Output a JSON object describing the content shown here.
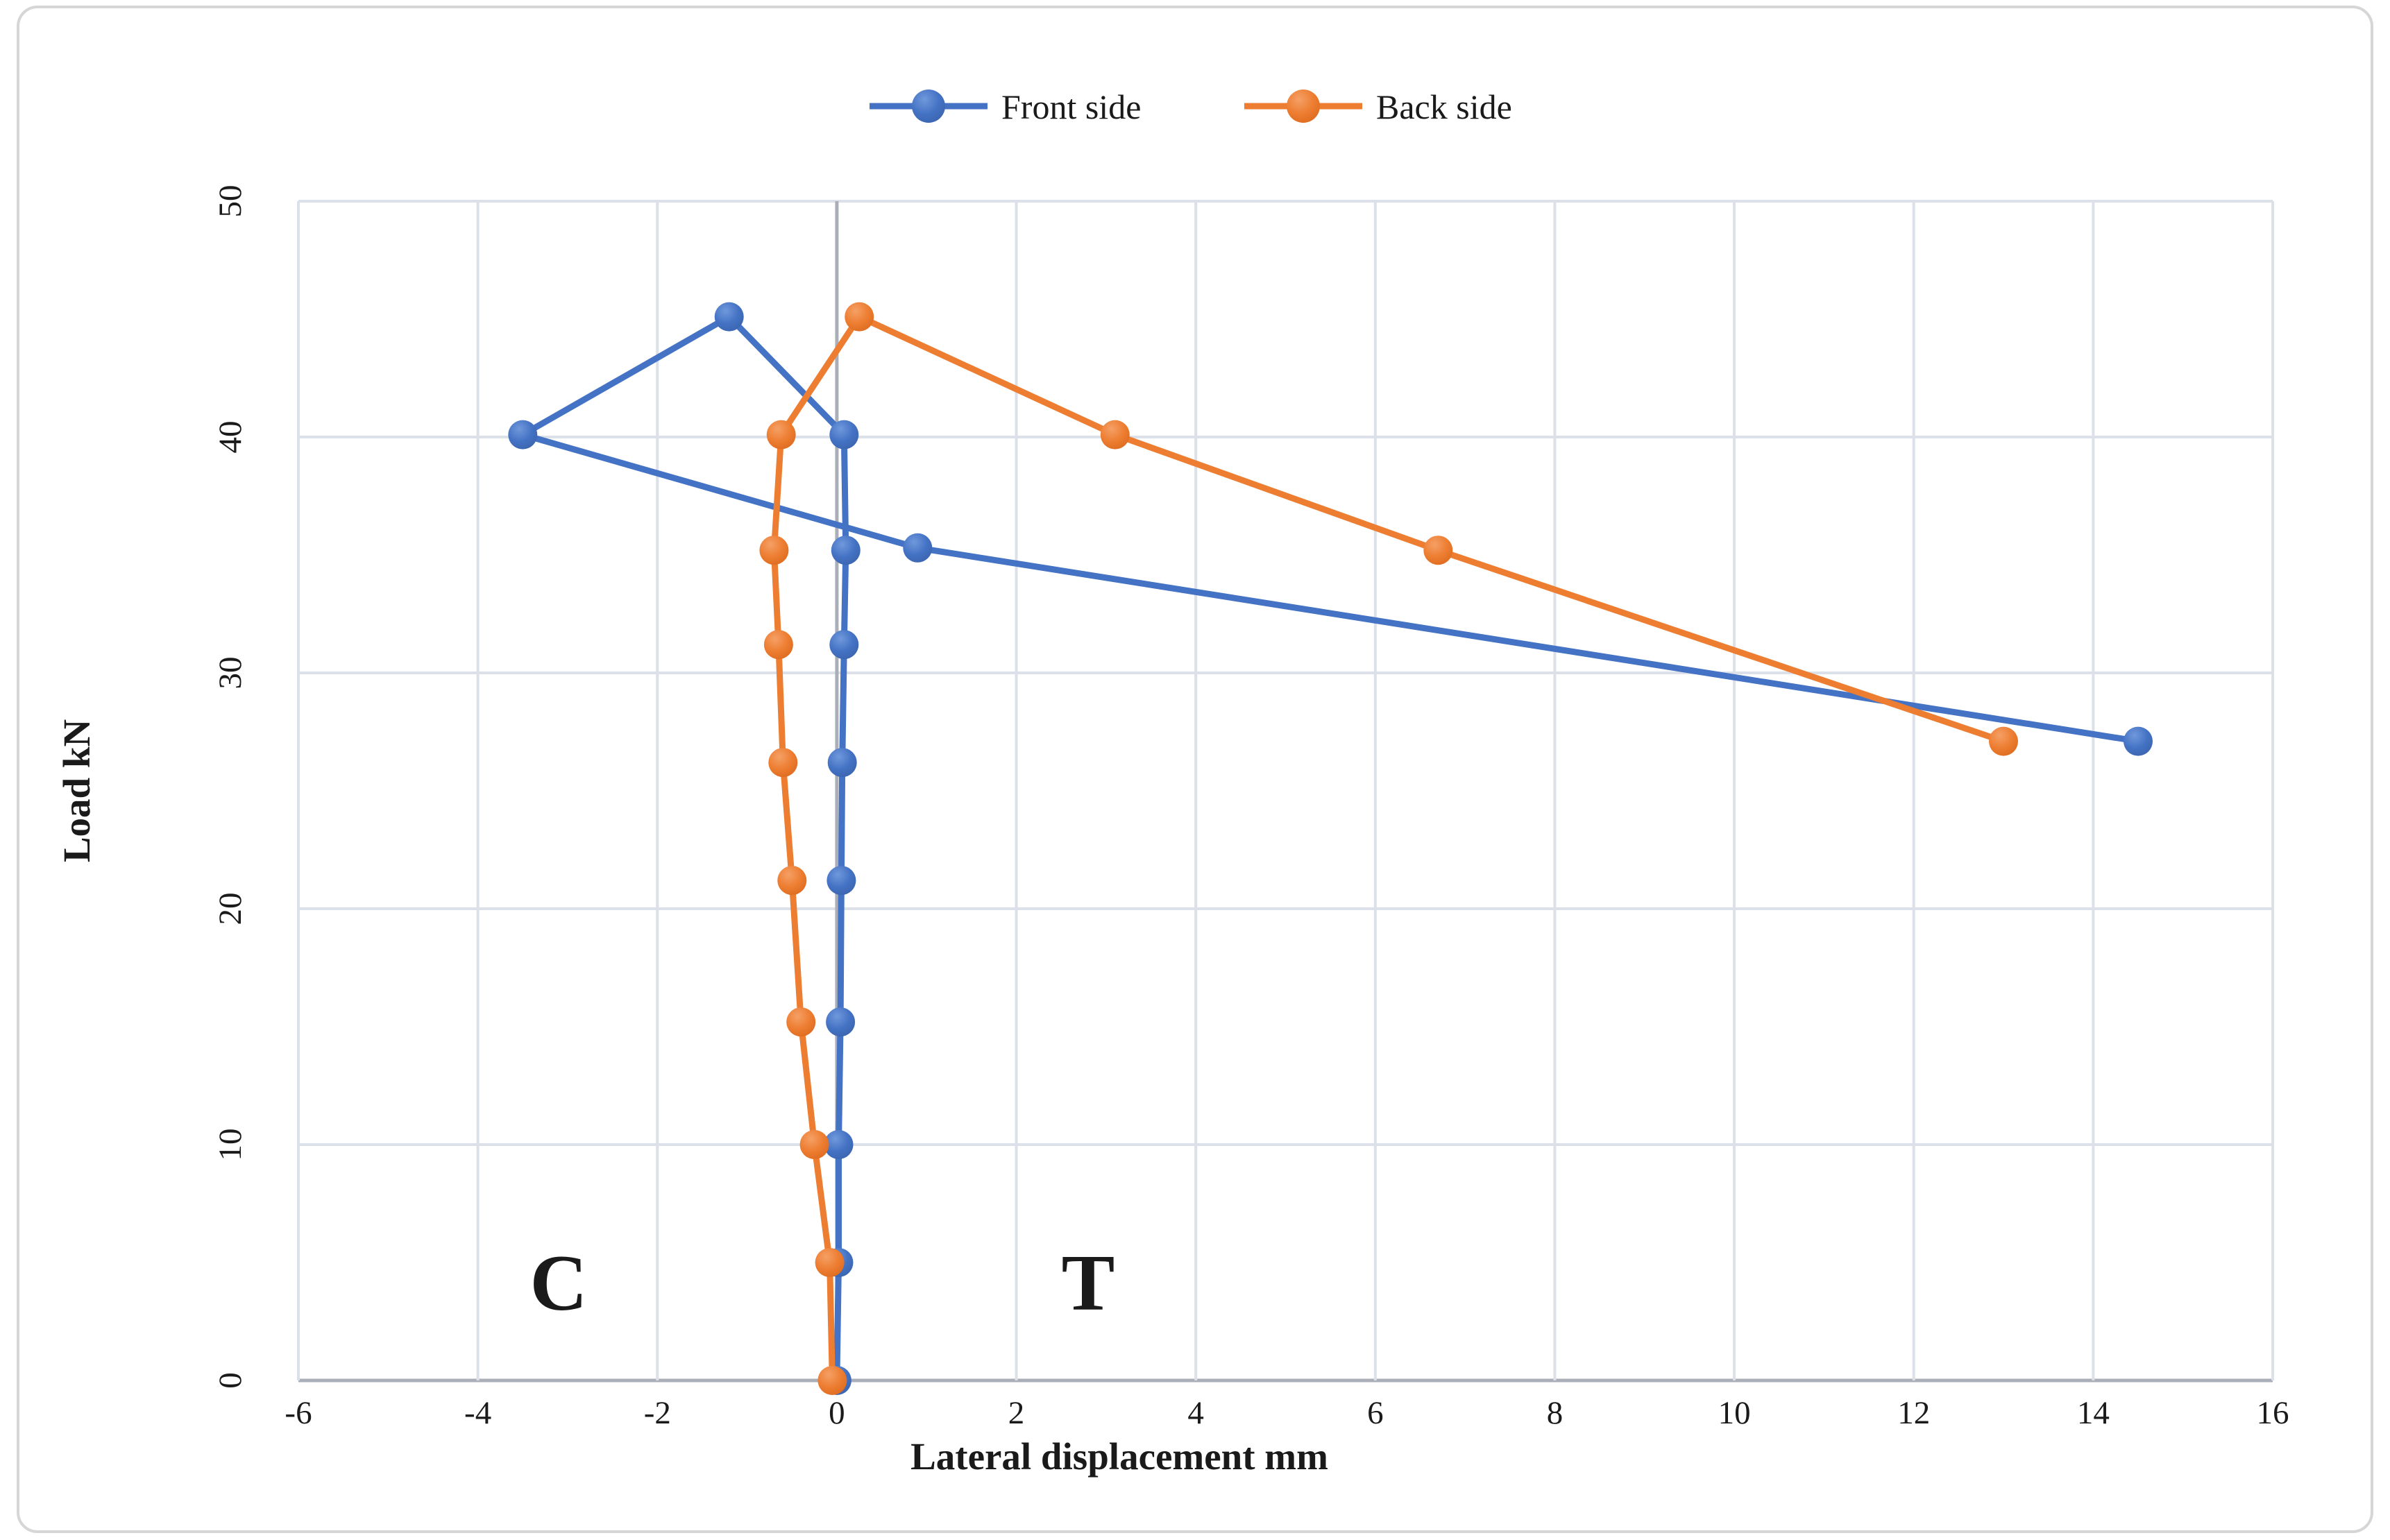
{
  "chart_data": {
    "type": "line",
    "title": "",
    "xlabel": "Lateral displacement mm",
    "ylabel": "Load kN",
    "xlim": [
      -6,
      16
    ],
    "ylim": [
      0,
      50
    ],
    "xticks": [
      -6,
      -4,
      -2,
      0,
      2,
      4,
      6,
      8,
      10,
      12,
      14,
      16
    ],
    "yticks": [
      0,
      10,
      20,
      30,
      40,
      50
    ],
    "grid": true,
    "legend_position": "top-center",
    "series": [
      {
        "name": "Front side",
        "color": "#4472C4",
        "points": [
          [
            0.0,
            0
          ],
          [
            0.02,
            5
          ],
          [
            0.02,
            10
          ],
          [
            0.04,
            15.2
          ],
          [
            0.05,
            21.2
          ],
          [
            0.06,
            26.2
          ],
          [
            0.08,
            31.2
          ],
          [
            0.1,
            35.2
          ],
          [
            0.08,
            40.1
          ],
          [
            -1.2,
            45.1
          ],
          [
            -3.5,
            40.1
          ],
          [
            0.9,
            35.3
          ],
          [
            14.5,
            27.1
          ]
        ]
      },
      {
        "name": "Back side",
        "color": "#ED7D31",
        "points": [
          [
            -0.05,
            0
          ],
          [
            -0.08,
            5
          ],
          [
            -0.25,
            10
          ],
          [
            -0.4,
            15.2
          ],
          [
            -0.5,
            21.2
          ],
          [
            -0.6,
            26.2
          ],
          [
            -0.65,
            31.2
          ],
          [
            -0.7,
            35.2
          ],
          [
            -0.62,
            40.1
          ],
          [
            0.25,
            45.1
          ],
          [
            3.1,
            40.1
          ],
          [
            6.7,
            35.2
          ],
          [
            13.0,
            27.1
          ]
        ]
      }
    ],
    "annotations": [
      {
        "text": "C",
        "x": -3.1,
        "y": 4.2
      },
      {
        "text": "T",
        "x": 2.8,
        "y": 4.2
      }
    ]
  },
  "legend": {
    "front_label": "Front side",
    "back_label": "Back side"
  },
  "axes": {
    "x_title": "Lateral displacement mm",
    "y_title": "Load kN"
  },
  "annotations": {
    "compression": "C",
    "tension": "T"
  },
  "colors": {
    "front": "#4472C4",
    "back": "#ED7D31",
    "gridline": "#DCE0E8",
    "axisline": "#A9AEB8",
    "border": "#D6D6D6",
    "text": "#1a1a1a"
  }
}
